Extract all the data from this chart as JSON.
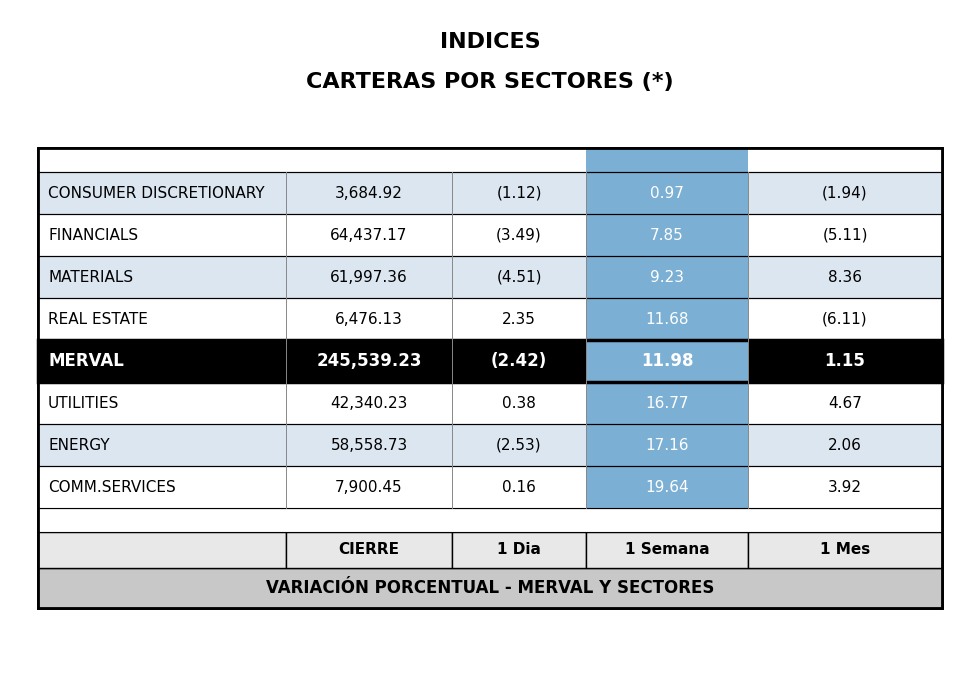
{
  "title_line1": "INDICES",
  "title_line2": "CARTERAS POR SECTORES (*)",
  "header_main": "VARIACIÓN PORCENTUAL - MERVAL Y SECTORES",
  "col_headers": [
    "",
    "CIERRE",
    "1 Dia",
    "1 Semana",
    "1 Mes"
  ],
  "rows": [
    {
      "sector": "COMM.SERVICES",
      "cierre": "7,900.45",
      "dia": "0.16",
      "semana": "19.64",
      "mes": "3.92",
      "merval": false,
      "row_bg": "#ffffff"
    },
    {
      "sector": "ENERGY",
      "cierre": "58,558.73",
      "dia": "(2.53)",
      "semana": "17.16",
      "mes": "2.06",
      "merval": false,
      "row_bg": "#dce6f1"
    },
    {
      "sector": "UTILITIES",
      "cierre": "42,340.23",
      "dia": "0.38",
      "semana": "16.77",
      "mes": "4.67",
      "merval": false,
      "row_bg": "#ffffff"
    },
    {
      "sector": "MERVAL",
      "cierre": "245,539.23",
      "dia": "(2.42)",
      "semana": "11.98",
      "mes": "1.15",
      "merval": true,
      "row_bg": "#000000"
    },
    {
      "sector": "REAL ESTATE",
      "cierre": "6,476.13",
      "dia": "2.35",
      "semana": "11.68",
      "mes": "(6.11)",
      "merval": false,
      "row_bg": "#ffffff"
    },
    {
      "sector": "MATERIALS",
      "cierre": "61,997.36",
      "dia": "(4.51)",
      "semana": "9.23",
      "mes": "8.36",
      "merval": false,
      "row_bg": "#dce6f1"
    },
    {
      "sector": "FINANCIALS",
      "cierre": "64,437.17",
      "dia": "(3.49)",
      "semana": "7.85",
      "mes": "(5.11)",
      "merval": false,
      "row_bg": "#ffffff"
    },
    {
      "sector": "CONSUMER DISCRETIONARY",
      "cierre": "3,684.92",
      "dia": "(1.12)",
      "semana": "0.97",
      "mes": "(1.94)",
      "merval": false,
      "row_bg": "#dce6f1"
    }
  ],
  "color_header_bg": "#c8c8c8",
  "color_col_header_bg": "#e8e8e8",
  "color_merval_bg": "#000000",
  "color_merval_text": "#ffffff",
  "color_semana_bg": "#7bafd4",
  "color_semana_text": "#ffffff",
  "color_border": "#000000",
  "color_text": "#000000",
  "fig_width": 9.8,
  "fig_height": 6.76,
  "dpi": 100
}
